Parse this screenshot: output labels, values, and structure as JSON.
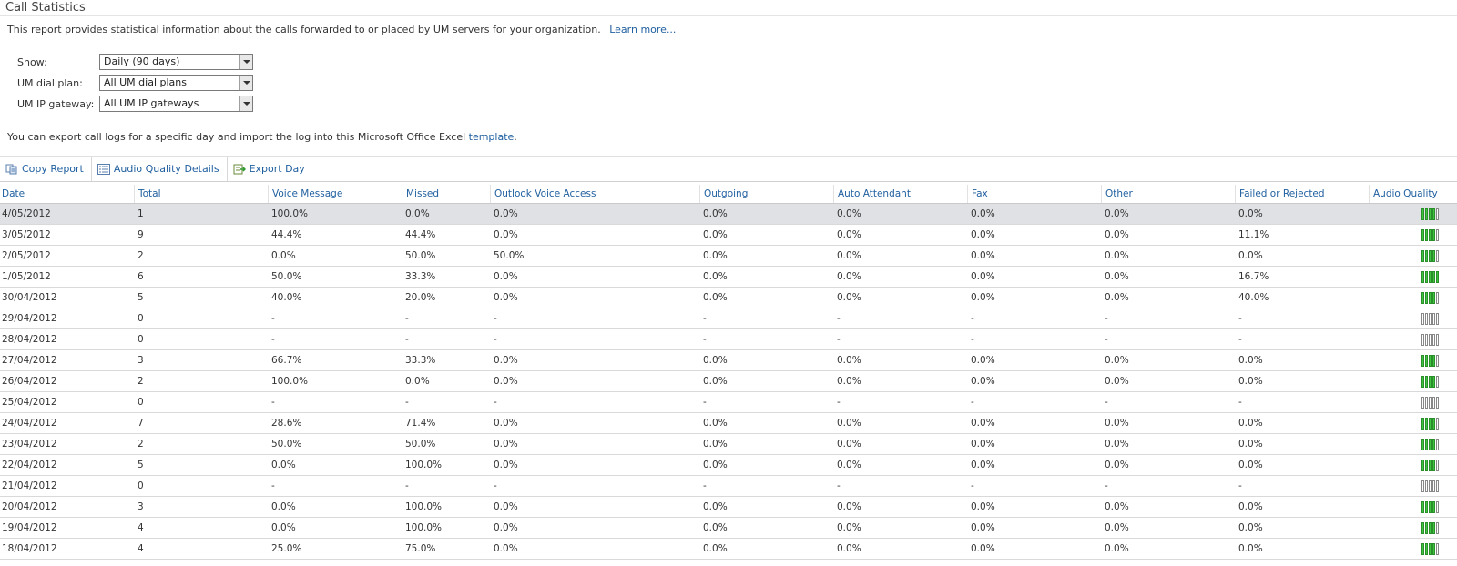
{
  "page": {
    "title": "Call Statistics",
    "description": "This report provides statistical information about the calls forwarded to or placed by UM servers for your organization.",
    "learn_more": "Learn more...",
    "export_note_prefix": "You can export call logs for a specific day and import the log into this Microsoft Office Excel ",
    "export_note_link": "template",
    "export_note_suffix": "."
  },
  "filters": {
    "show": {
      "label": "Show:",
      "value": "Daily (90 days)"
    },
    "dial_plan": {
      "label": "UM dial plan:",
      "value": "All UM dial plans"
    },
    "gateway": {
      "label": "UM IP gateway:",
      "value": "All UM IP gateways"
    }
  },
  "toolbar": {
    "copy_report": "Copy Report",
    "audio_quality_details": "Audio Quality Details",
    "export_day": "Export Day"
  },
  "table": {
    "columns": [
      "Date",
      "Total",
      "Voice Message",
      "Missed",
      "Outlook Voice Access",
      "Outgoing",
      "Auto Attendant",
      "Fax",
      "Other",
      "Failed or Rejected",
      "Audio Quality"
    ],
    "rows": [
      {
        "cells": [
          "4/05/2012",
          "1",
          "100.0%",
          "0.0%",
          "0.0%",
          "0.0%",
          "0.0%",
          "0.0%",
          "0.0%",
          "0.0%"
        ],
        "quality": 4,
        "selected": true
      },
      {
        "cells": [
          "3/05/2012",
          "9",
          "44.4%",
          "44.4%",
          "0.0%",
          "0.0%",
          "0.0%",
          "0.0%",
          "0.0%",
          "11.1%"
        ],
        "quality": 4
      },
      {
        "cells": [
          "2/05/2012",
          "2",
          "0.0%",
          "50.0%",
          "50.0%",
          "0.0%",
          "0.0%",
          "0.0%",
          "0.0%",
          "0.0%"
        ],
        "quality": 4
      },
      {
        "cells": [
          "1/05/2012",
          "6",
          "50.0%",
          "33.3%",
          "0.0%",
          "0.0%",
          "0.0%",
          "0.0%",
          "0.0%",
          "16.7%"
        ],
        "quality": 5
      },
      {
        "cells": [
          "30/04/2012",
          "5",
          "40.0%",
          "20.0%",
          "0.0%",
          "0.0%",
          "0.0%",
          "0.0%",
          "0.0%",
          "40.0%"
        ],
        "quality": 4
      },
      {
        "cells": [
          "29/04/2012",
          "0",
          "-",
          "-",
          "-",
          "-",
          "-",
          "-",
          "-",
          "-"
        ],
        "quality": 0
      },
      {
        "cells": [
          "28/04/2012",
          "0",
          "-",
          "-",
          "-",
          "-",
          "-",
          "-",
          "-",
          "-"
        ],
        "quality": 0
      },
      {
        "cells": [
          "27/04/2012",
          "3",
          "66.7%",
          "33.3%",
          "0.0%",
          "0.0%",
          "0.0%",
          "0.0%",
          "0.0%",
          "0.0%"
        ],
        "quality": 4
      },
      {
        "cells": [
          "26/04/2012",
          "2",
          "100.0%",
          "0.0%",
          "0.0%",
          "0.0%",
          "0.0%",
          "0.0%",
          "0.0%",
          "0.0%"
        ],
        "quality": 4
      },
      {
        "cells": [
          "25/04/2012",
          "0",
          "-",
          "-",
          "-",
          "-",
          "-",
          "-",
          "-",
          "-"
        ],
        "quality": 0
      },
      {
        "cells": [
          "24/04/2012",
          "7",
          "28.6%",
          "71.4%",
          "0.0%",
          "0.0%",
          "0.0%",
          "0.0%",
          "0.0%",
          "0.0%"
        ],
        "quality": 4
      },
      {
        "cells": [
          "23/04/2012",
          "2",
          "50.0%",
          "50.0%",
          "0.0%",
          "0.0%",
          "0.0%",
          "0.0%",
          "0.0%",
          "0.0%"
        ],
        "quality": 4
      },
      {
        "cells": [
          "22/04/2012",
          "5",
          "0.0%",
          "100.0%",
          "0.0%",
          "0.0%",
          "0.0%",
          "0.0%",
          "0.0%",
          "0.0%"
        ],
        "quality": 4
      },
      {
        "cells": [
          "21/04/2012",
          "0",
          "-",
          "-",
          "-",
          "-",
          "-",
          "-",
          "-",
          "-"
        ],
        "quality": 0
      },
      {
        "cells": [
          "20/04/2012",
          "3",
          "0.0%",
          "100.0%",
          "0.0%",
          "0.0%",
          "0.0%",
          "0.0%",
          "0.0%",
          "0.0%"
        ],
        "quality": 4
      },
      {
        "cells": [
          "19/04/2012",
          "4",
          "0.0%",
          "100.0%",
          "0.0%",
          "0.0%",
          "0.0%",
          "0.0%",
          "0.0%",
          "0.0%"
        ],
        "quality": 4
      },
      {
        "cells": [
          "18/04/2012",
          "4",
          "25.0%",
          "75.0%",
          "0.0%",
          "0.0%",
          "0.0%",
          "0.0%",
          "0.0%",
          "0.0%"
        ],
        "quality": 4
      }
    ]
  },
  "colors": {
    "link": "#1f5f9f",
    "selected_row": "#dfe1e4",
    "quality_on": "#3ec43e"
  },
  "icons": {
    "copy_report": "copy-icon",
    "audio_quality_details": "details-list-icon",
    "export_day": "export-icon"
  }
}
